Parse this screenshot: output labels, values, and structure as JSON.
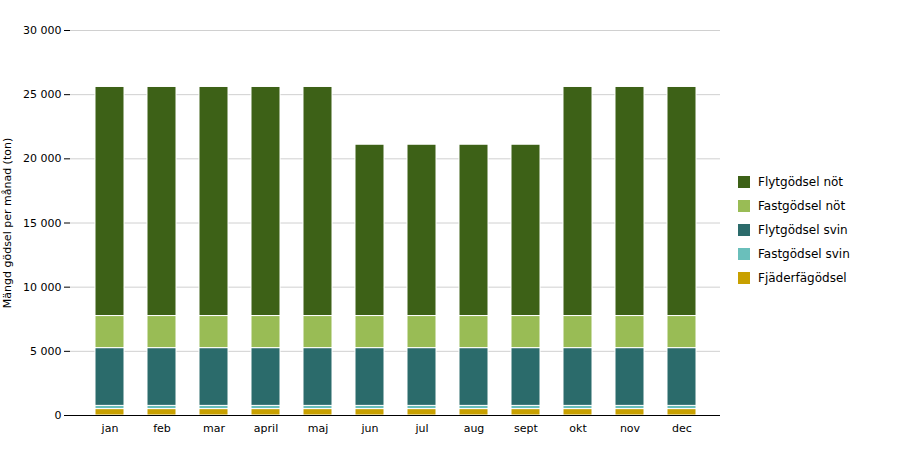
{
  "chart_data": {
    "type": "bar",
    "stacked": true,
    "categories": [
      "jan",
      "feb",
      "mar",
      "april",
      "maj",
      "jun",
      "jul",
      "aug",
      "sept",
      "okt",
      "nov",
      "dec"
    ],
    "series": [
      {
        "name": "Fjäderfägödsel",
        "color": "#C8A000",
        "values": [
          500,
          500,
          500,
          500,
          500,
          500,
          500,
          500,
          500,
          500,
          500,
          500
        ]
      },
      {
        "name": "Fastgödsel svin",
        "color": "#6ABFBB",
        "values": [
          250,
          250,
          250,
          250,
          250,
          250,
          250,
          250,
          250,
          250,
          250,
          250
        ]
      },
      {
        "name": "Flytgödsel svin",
        "color": "#2B6B6B",
        "values": [
          4500,
          4500,
          4500,
          4500,
          4500,
          4500,
          4500,
          4500,
          4500,
          4500,
          4500,
          4500
        ]
      },
      {
        "name": "Fastgödsel nöt",
        "color": "#99BC55",
        "values": [
          2500,
          2500,
          2500,
          2500,
          2500,
          2500,
          2500,
          2500,
          2500,
          2500,
          2500,
          2500
        ]
      },
      {
        "name": "Flytgödsel nöt",
        "color": "#3D6117",
        "values": [
          17850,
          17850,
          17850,
          17850,
          17850,
          13350,
          13350,
          13350,
          13350,
          17850,
          17850,
          17850
        ]
      }
    ],
    "ylabel": "Mängd gödsel per månad (ton)",
    "ylim": [
      0,
      30000
    ],
    "yticks": [
      0,
      {
        "value": 5000,
        "label": "5 000"
      },
      {
        "value": 10000,
        "label": "10 000"
      },
      {
        "value": 15000,
        "label": "15 000"
      },
      {
        "value": 20000,
        "label": "20 000"
      },
      {
        "value": 25000,
        "label": "25 000"
      },
      {
        "value": 30000,
        "label": "30 000"
      }
    ],
    "grid": true,
    "legend": "right"
  }
}
